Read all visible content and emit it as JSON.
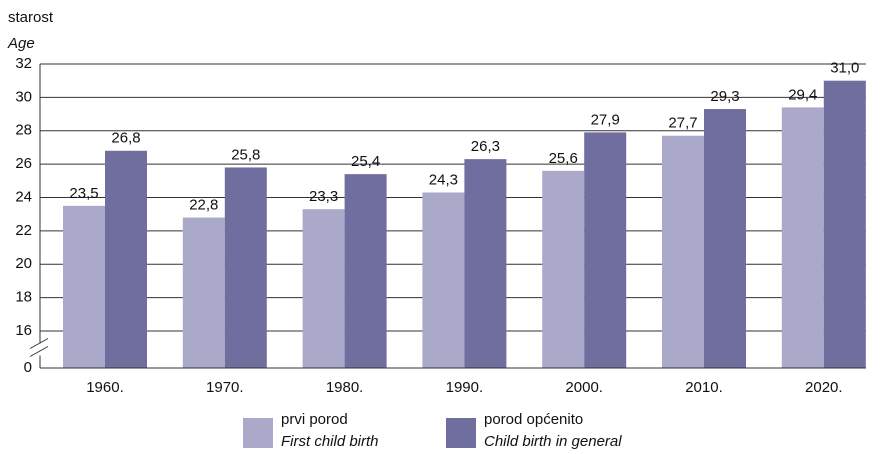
{
  "chart_data": {
    "type": "bar",
    "y_label": "starost",
    "y_label_en": "Age",
    "categories": [
      "1960.",
      "1970.",
      "1980.",
      "1990.",
      "2000.",
      "2010.",
      "2020."
    ],
    "series": [
      {
        "name": "prvi porod",
        "name_en": "First child birth",
        "color": "#aba9c9",
        "values": [
          23.5,
          22.8,
          23.3,
          24.3,
          25.6,
          27.7,
          29.4
        ],
        "value_labels": [
          "23,5",
          "22,8",
          "23,3",
          "24,3",
          "25,6",
          "27,7",
          "29,4"
        ]
      },
      {
        "name": "porod općenito",
        "name_en": "Child birth in general",
        "color": "#6f6e9e",
        "values": [
          26.8,
          25.8,
          25.4,
          26.3,
          27.9,
          29.3,
          31.0
        ],
        "value_labels": [
          "26,8",
          "25,8",
          "25,4",
          "26,3",
          "27,9",
          "29,3",
          "31,0"
        ]
      }
    ],
    "ylim": [
      0,
      32
    ],
    "axis_break": [
      0,
      16
    ],
    "yticks": [
      0,
      16,
      18,
      20,
      22,
      24,
      26,
      28,
      30,
      32
    ],
    "grid": true
  }
}
